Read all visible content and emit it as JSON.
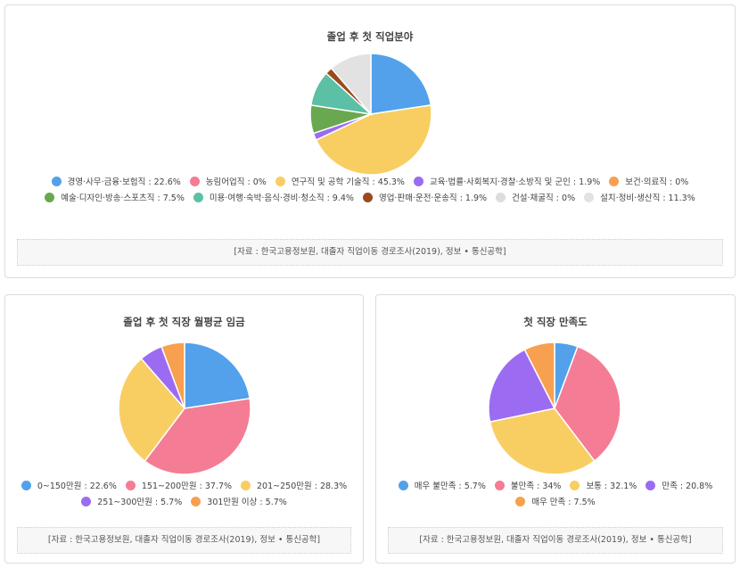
{
  "charts": [
    {
      "title": "졸업 후 첫 직업분야",
      "source": "[자료 : 한국고용정보원, 대졸자 직업이동 경로조사(2019), 정보 • 통신공학]"
    },
    {
      "title": "졸업 후 첫 직장 월평균 임금",
      "source": "[자료 : 한국고용정보원, 대졸자 직업이동 경로조사(2019), 정보 • 통신공학]"
    },
    {
      "title": "첫 직장 만족도",
      "source": "[자료 : 한국고용정보원, 대졸자 직업이동 경로조사(2019), 정보 • 통신공학]"
    }
  ],
  "chart_data": [
    {
      "type": "pie",
      "title": "졸업 후 첫 직업분야",
      "legend_position": "bottom",
      "series": [
        {
          "name": "경영·사무·금융·보험직",
          "value": 22.6,
          "label": "경영·사무·금융·보험직 : 22.6%",
          "color": "#52a1ea"
        },
        {
          "name": "농림어업직",
          "value": 0,
          "label": "농림어업직 : 0%",
          "color": "#f47c94"
        },
        {
          "name": "연구직 및 공학 기술직",
          "value": 45.3,
          "label": "연구직 및 공학 기술직 : 45.3%",
          "color": "#f8ce63"
        },
        {
          "name": "교육·법률·사회복지·경찰·소방직 및 군인",
          "value": 1.9,
          "label": "교육·법률·사회복지·경찰·소방직 및 군인 : 1.9%",
          "color": "#9b6cf2"
        },
        {
          "name": "보건·의료직",
          "value": 0,
          "label": "보건·의료직 : 0%",
          "color": "#f7a04f"
        },
        {
          "name": "예술·디자인·방송·스포츠직",
          "value": 7.5,
          "label": "예술·디자인·방송·스포츠직 : 7.5%",
          "color": "#6aa84f"
        },
        {
          "name": "미용·여행·숙박·음식·경비·청소직",
          "value": 9.4,
          "label": "미용·여행·숙박·음식·경비·청소직 : 9.4%",
          "color": "#5bc0a5"
        },
        {
          "name": "영업·판매·운전·운송직",
          "value": 1.9,
          "label": "영업·판매·운전·운송직 : 1.9%",
          "color": "#9a4b1e"
        },
        {
          "name": "건설·채굴직",
          "value": 0,
          "label": "건설·채굴직 : 0%",
          "color": "#dddddd"
        },
        {
          "name": "설치·정비·생산직",
          "value": 11.3,
          "label": "설치·정비·생산직 : 11.3%",
          "color": "#e2e2e2"
        }
      ]
    },
    {
      "type": "pie",
      "title": "졸업 후 첫 직장 월평균 임금",
      "legend_position": "bottom",
      "series": [
        {
          "name": "0~150만원",
          "value": 22.6,
          "label": "0~150만원 : 22.6%",
          "color": "#52a1ea"
        },
        {
          "name": "151~200만원",
          "value": 37.7,
          "label": "151~200만원 : 37.7%",
          "color": "#f47c94"
        },
        {
          "name": "201~250만원",
          "value": 28.3,
          "label": "201~250만원 : 28.3%",
          "color": "#f8ce63"
        },
        {
          "name": "251~300만원",
          "value": 5.7,
          "label": "251~300만원 : 5.7%",
          "color": "#9b6cf2"
        },
        {
          "name": "301만원 이상",
          "value": 5.7,
          "label": "301만원 이상 : 5.7%",
          "color": "#f7a04f"
        }
      ]
    },
    {
      "type": "pie",
      "title": "첫 직장 만족도",
      "legend_position": "bottom",
      "series": [
        {
          "name": "매우 불만족",
          "value": 5.7,
          "label": "매우 불만족 : 5.7%",
          "color": "#52a1ea"
        },
        {
          "name": "불만족",
          "value": 34,
          "label": "불만족 : 34%",
          "color": "#f47c94"
        },
        {
          "name": "보통",
          "value": 32.1,
          "label": "보통 : 32.1%",
          "color": "#f8ce63"
        },
        {
          "name": "만족",
          "value": 20.8,
          "label": "만족 : 20.8%",
          "color": "#9b6cf2"
        },
        {
          "name": "매우 만족",
          "value": 7.5,
          "label": "매우 만족 : 7.5%",
          "color": "#f7a04f"
        }
      ]
    }
  ]
}
